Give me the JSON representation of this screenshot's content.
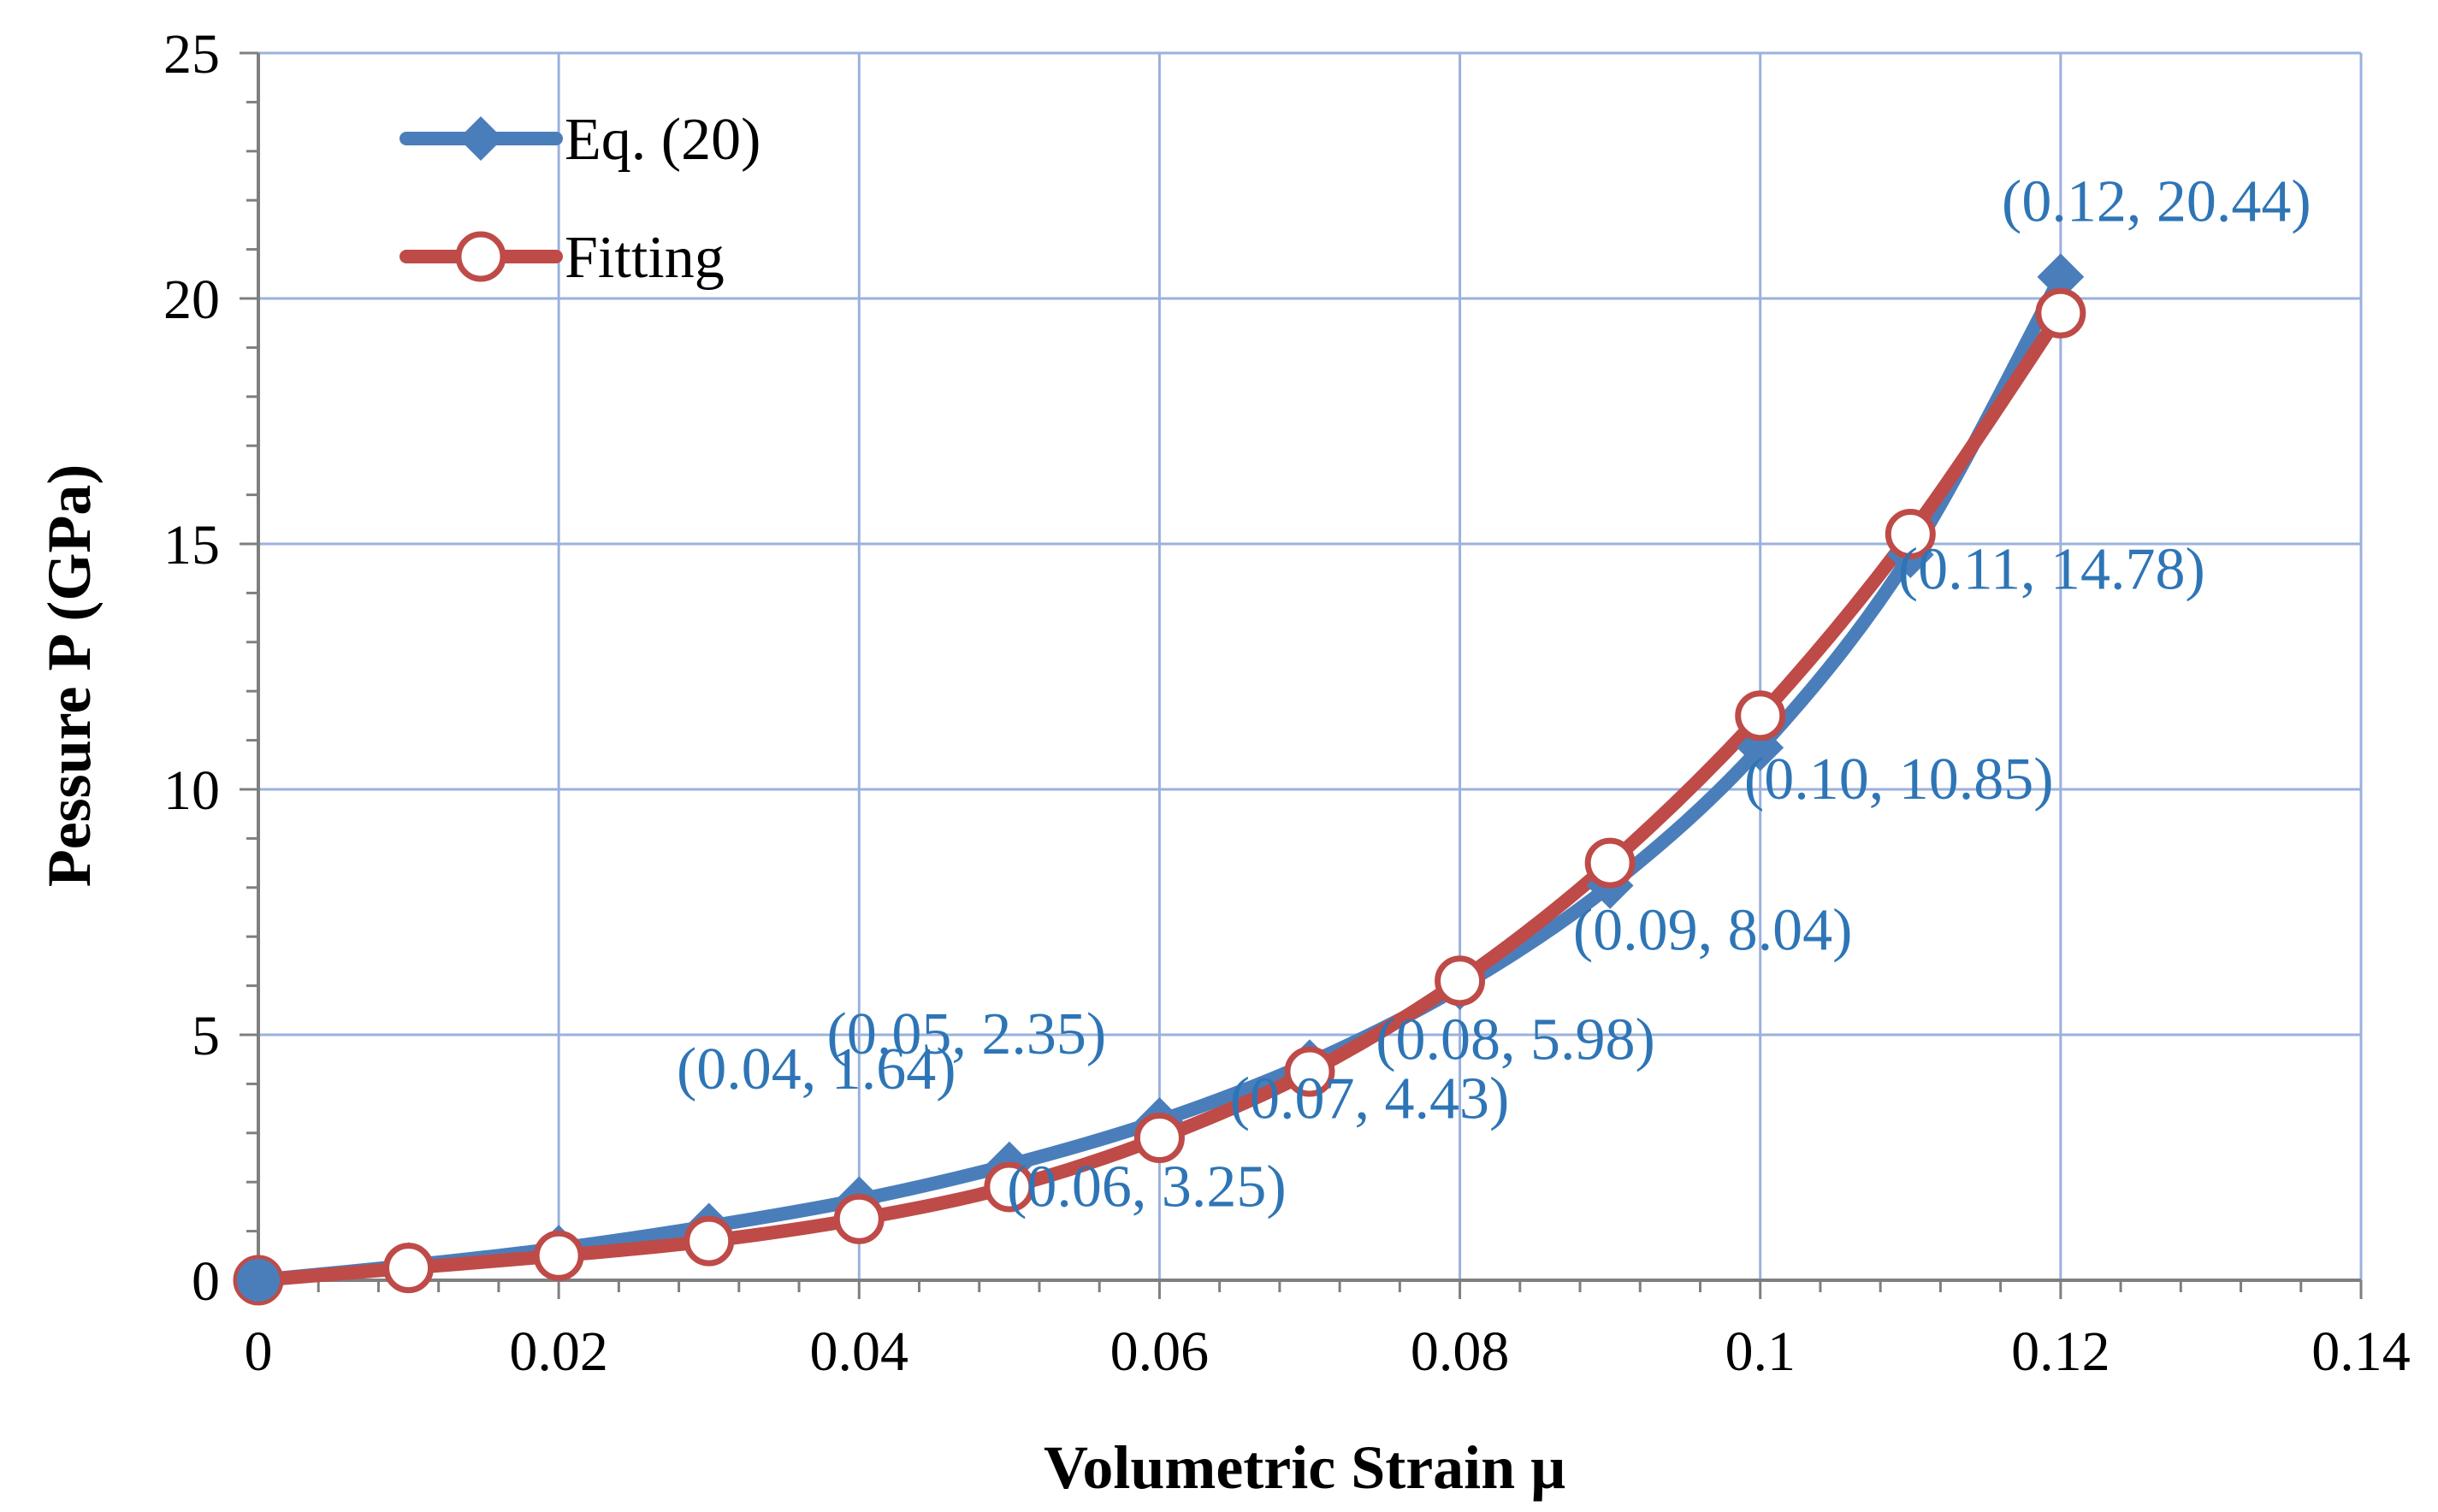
{
  "chart_data": {
    "type": "line",
    "title": "",
    "xlabel": "Volumetric Strain μ",
    "ylabel": "Pessure P (GPa)",
    "xlim": [
      0,
      0.14
    ],
    "ylim": [
      0,
      25
    ],
    "xticks": [
      0,
      0.02,
      0.04,
      0.06,
      0.08,
      0.1,
      0.12,
      0.14
    ],
    "xtick_labels": [
      "0",
      "0.02",
      "0.04",
      "0.06",
      "0.08",
      "0.1",
      "0.12",
      "0.14"
    ],
    "yticks": [
      0,
      5,
      10,
      15,
      20,
      25
    ],
    "ytick_labels": [
      "0",
      "5",
      "10",
      "15",
      "20",
      "25"
    ],
    "grid": true,
    "legend_position": "top-left",
    "series": [
      {
        "name": "Eq. (20)",
        "color": "#4a7ebb",
        "marker": "diamond",
        "x": [
          0,
          0.01,
          0.02,
          0.03,
          0.04,
          0.05,
          0.06,
          0.07,
          0.08,
          0.09,
          0.1,
          0.11,
          0.12
        ],
        "y": [
          0,
          0.3,
          0.65,
          1.1,
          1.64,
          2.35,
          3.25,
          4.43,
          5.98,
          8.04,
          10.85,
          14.78,
          20.44
        ]
      },
      {
        "name": "Fitting",
        "color": "#be4b48",
        "marker": "open-circle",
        "x": [
          0,
          0.01,
          0.02,
          0.03,
          0.04,
          0.05,
          0.06,
          0.07,
          0.08,
          0.09,
          0.1,
          0.11,
          0.12
        ],
        "y": [
          0,
          0.25,
          0.5,
          0.8,
          1.25,
          1.9,
          2.9,
          4.25,
          6.1,
          8.5,
          11.5,
          15.2,
          19.7
        ]
      }
    ],
    "annotations": [
      {
        "text": "(0.04, 1.64)",
        "x": 0.04,
        "y": 1.64
      },
      {
        "text": "(0.05, 2.35)",
        "x": 0.05,
        "y": 2.35
      },
      {
        "text": "(0.06, 3.25)",
        "x": 0.06,
        "y": 3.25
      },
      {
        "text": "(0.07, 4.43)",
        "x": 0.07,
        "y": 4.43
      },
      {
        "text": "(0.08, 5.98)",
        "x": 0.08,
        "y": 5.98
      },
      {
        "text": "(0.09, 8.04)",
        "x": 0.09,
        "y": 8.04
      },
      {
        "text": "(0.10, 10.85)",
        "x": 0.1,
        "y": 10.85
      },
      {
        "text": "(0.11, 14.78)",
        "x": 0.11,
        "y": 14.78
      },
      {
        "text": "(0.12, 20.44)",
        "x": 0.12,
        "y": 20.44
      }
    ],
    "annotation_color": "#2e75b6"
  }
}
